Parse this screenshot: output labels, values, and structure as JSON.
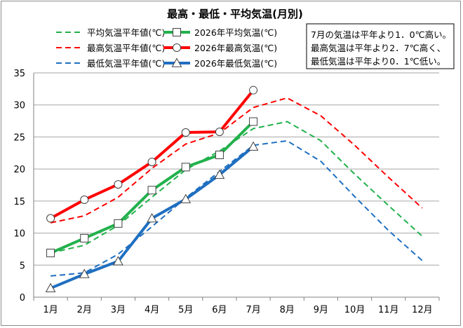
{
  "chart_data": {
    "type": "line",
    "title": "最高・最低・平均気温(月別)",
    "categories": [
      "1月",
      "2月",
      "3月",
      "4月",
      "5月",
      "6月",
      "7月",
      "8月",
      "9月",
      "10月",
      "11月",
      "12月"
    ],
    "ylim": [
      0,
      35
    ],
    "yticks": [
      0,
      5,
      10,
      15,
      20,
      25,
      30,
      35
    ],
    "grid": true,
    "legend_position": "top",
    "series": [
      {
        "name": "平均気温平年値(℃)",
        "style": "dashed",
        "color": "#22b14c",
        "marker": "none",
        "values": [
          6.9,
          8.1,
          11.2,
          15.6,
          19.9,
          22.8,
          26.3,
          27.4,
          24.4,
          19.2,
          14.3,
          9.5
        ]
      },
      {
        "name": "2026年平均気温(℃)",
        "style": "solid",
        "color": "#22b14c",
        "marker": "square",
        "values": [
          6.9,
          9.2,
          11.5,
          16.7,
          20.3,
          22.2,
          27.4,
          null,
          null,
          null,
          null,
          null
        ]
      },
      {
        "name": "最高気温平年値(℃)",
        "style": "dashed",
        "color": "#ff0000",
        "marker": "none",
        "values": [
          11.6,
          12.7,
          15.6,
          20.1,
          23.9,
          25.6,
          29.6,
          31.1,
          28.3,
          23.7,
          18.7,
          13.9
        ]
      },
      {
        "name": "2026年最高気温(℃)",
        "style": "solid",
        "color": "#ff0000",
        "marker": "circle",
        "values": [
          12.3,
          15.2,
          17.6,
          21.1,
          25.7,
          25.8,
          32.3,
          null,
          null,
          null,
          null,
          null
        ]
      },
      {
        "name": "最低気温平年値(℃)",
        "style": "dashed",
        "color": "#1f6fc0",
        "marker": "none",
        "values": [
          3.3,
          3.8,
          6.7,
          11.0,
          15.5,
          19.6,
          23.7,
          24.4,
          21.2,
          15.7,
          10.4,
          5.7
        ]
      },
      {
        "name": "2026年最低気温(℃)",
        "style": "solid",
        "color": "#1f6fc0",
        "marker": "triangle",
        "values": [
          1.4,
          3.6,
          5.6,
          12.3,
          15.3,
          19.1,
          23.5,
          null,
          null,
          null,
          null,
          null
        ]
      }
    ],
    "annotation": [
      "7月の気温は平年より1．0℃高い。",
      "最高気温は平年より2．7℃高く、",
      "最低気温は平年より0．1℃低い。"
    ]
  }
}
